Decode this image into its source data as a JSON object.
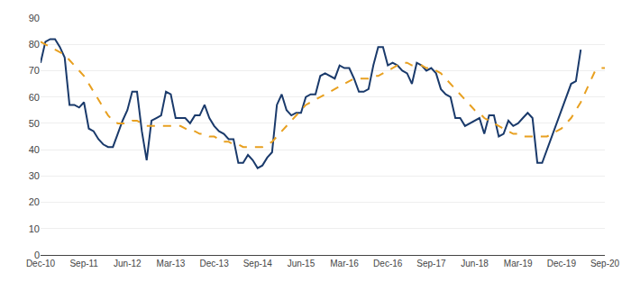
{
  "chart_data": {
    "type": "line",
    "categories": [
      "Dec-10",
      null,
      null,
      null,
      null,
      null,
      null,
      null,
      null,
      "Sep-11",
      null,
      null,
      null,
      null,
      null,
      null,
      null,
      null,
      "Jun-12",
      null,
      null,
      null,
      null,
      null,
      null,
      null,
      null,
      "Mar-13",
      null,
      null,
      null,
      null,
      null,
      null,
      null,
      null,
      "Dec-13",
      null,
      null,
      null,
      null,
      null,
      null,
      null,
      null,
      "Sep-14",
      null,
      null,
      null,
      null,
      null,
      null,
      null,
      null,
      "Jun-15",
      null,
      null,
      null,
      null,
      null,
      null,
      null,
      null,
      "Mar-16",
      null,
      null,
      null,
      null,
      null,
      null,
      null,
      null,
      "Dec-16",
      null,
      null,
      null,
      null,
      null,
      null,
      null,
      null,
      "Sep-17",
      null,
      null,
      null,
      null,
      null,
      null,
      null,
      null,
      "Jun-18",
      null,
      null,
      null,
      null,
      null,
      null,
      null,
      null,
      "Mar-19",
      null,
      null,
      null,
      null,
      null,
      null,
      null,
      null,
      "Dec-19",
      null,
      null,
      null,
      null,
      null,
      null,
      null,
      null,
      "Sep-20"
    ],
    "series": [
      {
        "color": "#1a3a6b",
        "line_style": "solid",
        "values": [
          73,
          81,
          82,
          82,
          79,
          75,
          57,
          57,
          56,
          58,
          48,
          47,
          44,
          42,
          41,
          41,
          46,
          51,
          55,
          62,
          62,
          47,
          36,
          51,
          52,
          53,
          62,
          61,
          52,
          52,
          52,
          50,
          53,
          53,
          57,
          52,
          49,
          47,
          46,
          44,
          44,
          35,
          35,
          38,
          36,
          33,
          34,
          37,
          39,
          57,
          61,
          55,
          53,
          54,
          54,
          60,
          61,
          61,
          68,
          69,
          68,
          67,
          72,
          71,
          71,
          67,
          62,
          62,
          63,
          72,
          79,
          79,
          72,
          73,
          72,
          70,
          69,
          65,
          73,
          72,
          70,
          71,
          69,
          63,
          61,
          60,
          52,
          52,
          49,
          50,
          51,
          52,
          46,
          53,
          53,
          45,
          46,
          51,
          49,
          50,
          52,
          54,
          52,
          35,
          35,
          40,
          45,
          50,
          55,
          60,
          65,
          66,
          78,
          null,
          null,
          null,
          null,
          null
        ]
      },
      {
        "color": "#e8a020",
        "line_style": "dashed",
        "values": [
          81,
          80,
          79,
          78,
          77,
          76,
          74,
          72,
          70,
          68,
          65,
          62,
          59,
          56,
          53,
          51,
          50,
          50,
          50,
          51,
          51,
          50,
          49,
          49,
          49,
          49,
          49,
          49,
          49,
          49,
          48,
          47,
          47,
          46,
          46,
          45,
          45,
          44,
          43,
          43,
          42,
          42,
          41,
          41,
          41,
          41,
          41,
          42,
          43,
          45,
          47,
          49,
          51,
          53,
          55,
          57,
          58,
          59,
          60,
          61,
          62,
          63,
          64,
          65,
          66,
          67,
          67,
          67,
          67,
          68,
          68,
          69,
          70,
          71,
          72,
          73,
          73,
          72,
          72,
          72,
          71,
          71,
          70,
          69,
          67,
          65,
          63,
          61,
          59,
          57,
          55,
          54,
          52,
          51,
          50,
          49,
          48,
          47,
          46,
          46,
          45,
          45,
          45,
          45,
          45,
          45,
          46,
          47,
          48,
          50,
          52,
          55,
          58,
          62,
          66,
          70,
          71,
          71
        ]
      }
    ],
    "ylim": [
      0,
      90
    ],
    "yticks": [
      0,
      10,
      20,
      30,
      40,
      50,
      60,
      70,
      80,
      90
    ],
    "grid": true
  }
}
